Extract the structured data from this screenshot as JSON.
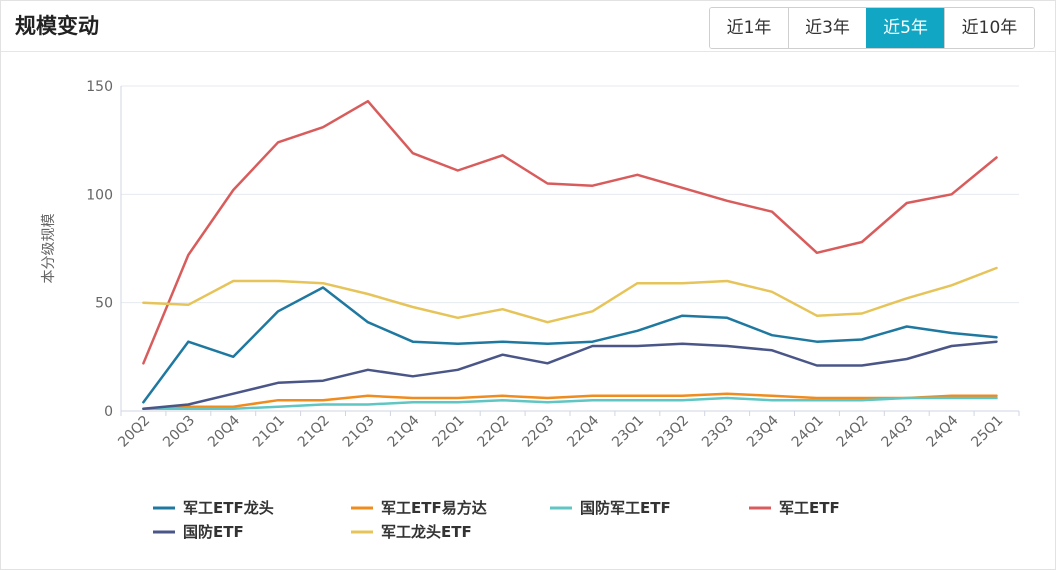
{
  "header": {
    "title": "规模变动",
    "ranges": [
      {
        "label": "近1年",
        "active": false
      },
      {
        "label": "近3年",
        "active": false
      },
      {
        "label": "近5年",
        "active": true
      },
      {
        "label": "近10年",
        "active": false
      }
    ]
  },
  "colors": {
    "accent": "#11a6c3",
    "grid": "#e6e9ef",
    "axis": "#cfd6e2"
  },
  "chart_data": {
    "type": "line",
    "ylabel": "本分级规模",
    "ylim": [
      0,
      150
    ],
    "yticks": [
      0,
      50,
      100,
      150
    ],
    "grid": true,
    "legend_position": "bottom",
    "categories": [
      "20Q2",
      "20Q3",
      "20Q4",
      "21Q1",
      "21Q2",
      "21Q3",
      "21Q4",
      "22Q1",
      "22Q2",
      "22Q3",
      "22Q4",
      "23Q1",
      "23Q2",
      "23Q3",
      "23Q4",
      "24Q1",
      "24Q2",
      "24Q3",
      "24Q4",
      "25Q1"
    ],
    "series": [
      {
        "name": "军工ETF龙头",
        "color": "#1f78a0",
        "values": [
          4,
          32,
          25,
          46,
          57,
          41,
          32,
          31,
          32,
          31,
          32,
          37,
          44,
          43,
          35,
          32,
          33,
          39,
          36,
          34
        ]
      },
      {
        "name": "军工ETF易方达",
        "color": "#f08c1e",
        "values": [
          1,
          2,
          2,
          5,
          5,
          7,
          6,
          6,
          7,
          6,
          7,
          7,
          7,
          8,
          7,
          6,
          6,
          6,
          7,
          7
        ]
      },
      {
        "name": "国防军工ETF",
        "color": "#5fc6c3",
        "values": [
          1,
          1,
          1,
          2,
          3,
          3,
          4,
          4,
          5,
          4,
          5,
          5,
          5,
          6,
          5,
          5,
          5,
          6,
          6,
          6
        ]
      },
      {
        "name": "军工ETF",
        "color": "#d95c5c",
        "values": [
          22,
          72,
          102,
          124,
          131,
          143,
          119,
          111,
          118,
          105,
          104,
          109,
          103,
          97,
          92,
          73,
          78,
          96,
          100,
          117
        ]
      },
      {
        "name": "国防ETF",
        "color": "#4a5688",
        "values": [
          1,
          3,
          8,
          13,
          14,
          19,
          16,
          19,
          26,
          22,
          30,
          30,
          31,
          30,
          28,
          21,
          21,
          24,
          30,
          32
        ]
      },
      {
        "name": "军工龙头ETF",
        "color": "#e6c45a",
        "values": [
          50,
          49,
          60,
          60,
          59,
          54,
          48,
          43,
          47,
          41,
          46,
          59,
          59,
          60,
          55,
          44,
          45,
          52,
          58,
          66
        ]
      }
    ]
  }
}
